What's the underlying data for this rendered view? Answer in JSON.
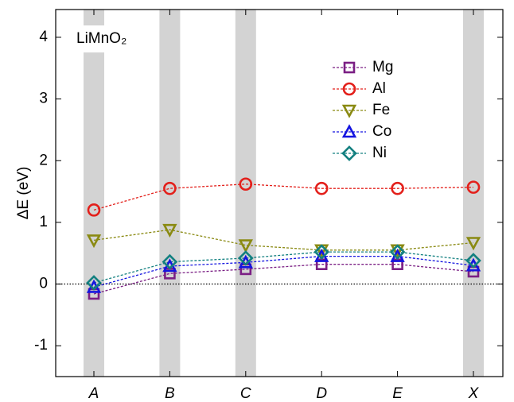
{
  "chart_data": {
    "type": "line",
    "annotation": "LiMnO₂",
    "y_label": "ΔE (eV)",
    "categories": [
      "A",
      "B",
      "C",
      "D",
      "E",
      "X"
    ],
    "shaded": [
      true,
      true,
      true,
      false,
      false,
      true
    ],
    "series": [
      {
        "name": "Mg",
        "color": "#7b1f84",
        "marker": "square",
        "values": [
          -0.16,
          0.17,
          0.24,
          0.32,
          0.32,
          0.2
        ]
      },
      {
        "name": "Al",
        "color": "#e3201b",
        "marker": "circle",
        "values": [
          1.2,
          1.55,
          1.62,
          1.55,
          1.55,
          1.57
        ]
      },
      {
        "name": "Fe",
        "color": "#8a8a12",
        "marker": "triangle-down",
        "values": [
          0.71,
          0.88,
          0.63,
          0.55,
          0.55,
          0.67
        ]
      },
      {
        "name": "Co",
        "color": "#1414e0",
        "marker": "triangle-up",
        "values": [
          -0.05,
          0.29,
          0.35,
          0.45,
          0.45,
          0.3
        ]
      },
      {
        "name": "Ni",
        "color": "#138080",
        "marker": "diamond",
        "values": [
          0.02,
          0.36,
          0.42,
          0.52,
          0.52,
          0.38
        ]
      }
    ],
    "ylim": [
      -1.5,
      4.45
    ],
    "yticks": [
      -1,
      0,
      1,
      2,
      3,
      4
    ],
    "zero_line": true,
    "legend": "upper-center"
  }
}
